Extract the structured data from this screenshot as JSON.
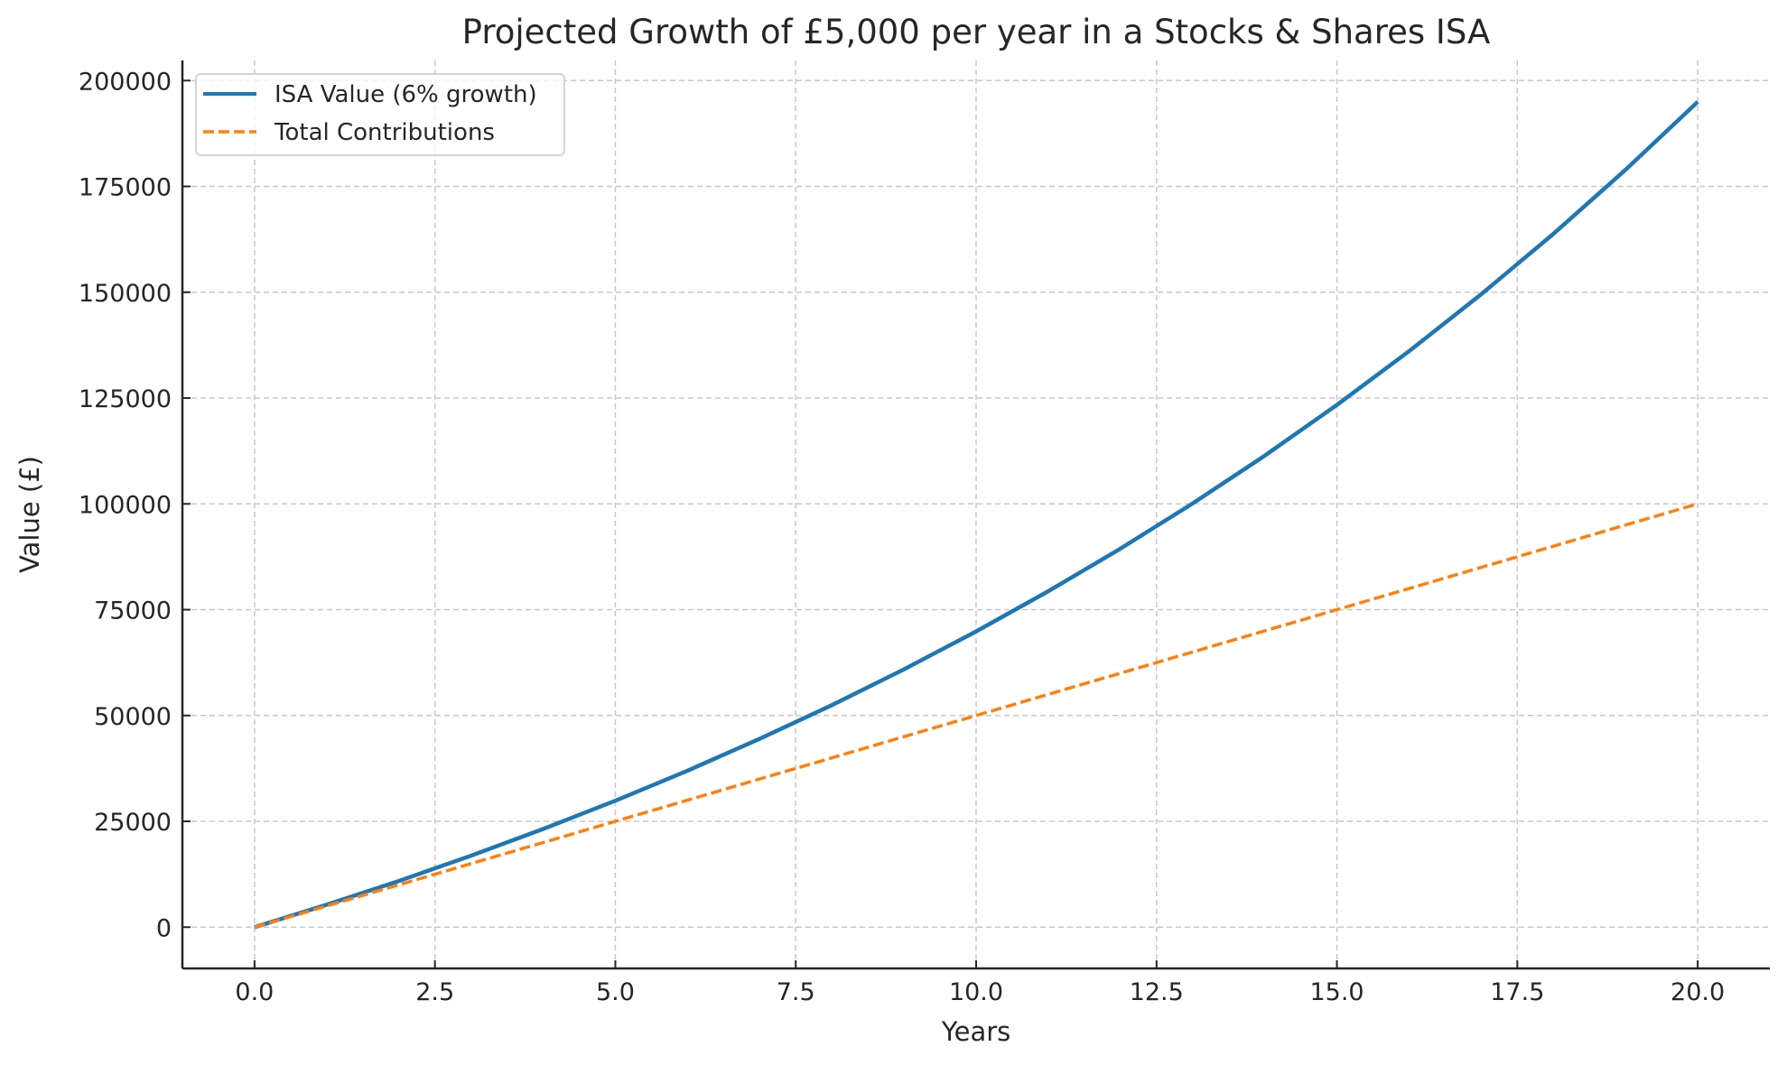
{
  "chart_data": {
    "type": "line",
    "title": "Projected Growth of £5,000 per year in a Stocks & Shares ISA",
    "xlabel": "Years",
    "ylabel": "Value (£)",
    "xlim": [
      -1,
      21
    ],
    "ylim": [
      -9750,
      204750
    ],
    "xticks": [
      0,
      2.5,
      5,
      7.5,
      10,
      12.5,
      15,
      17.5,
      20
    ],
    "xtick_labels": [
      "0.0",
      "2.5",
      "5.0",
      "7.5",
      "10.0",
      "12.5",
      "15.0",
      "17.5",
      "20.0"
    ],
    "yticks": [
      0,
      25000,
      50000,
      75000,
      100000,
      125000,
      150000,
      175000,
      200000
    ],
    "ytick_labels": [
      "0",
      "25000",
      "50000",
      "75000",
      "100000",
      "125000",
      "150000",
      "175000",
      "200000"
    ],
    "grid": true,
    "legend_position": "top-left",
    "x": [
      0,
      1,
      2,
      3,
      4,
      5,
      6,
      7,
      8,
      9,
      10,
      11,
      12,
      13,
      14,
      15,
      16,
      17,
      18,
      19,
      20
    ],
    "series": [
      {
        "name": "ISA Value (6% growth)",
        "color": "#1f77b4",
        "style": "solid",
        "values": [
          0,
          5300,
          10918,
          16873,
          23186,
          29877,
          36969,
          44487,
          52457,
          60904,
          69858,
          79350,
          89411,
          100075,
          111380,
          123363,
          136064,
          149528,
          163800,
          178928,
          194964
        ]
      },
      {
        "name": "Total Contributions",
        "color": "#ff7f0e",
        "style": "dashed",
        "values": [
          0,
          5000,
          10000,
          15000,
          20000,
          25000,
          30000,
          35000,
          40000,
          45000,
          50000,
          55000,
          60000,
          65000,
          70000,
          75000,
          80000,
          85000,
          90000,
          95000,
          100000
        ]
      }
    ]
  }
}
